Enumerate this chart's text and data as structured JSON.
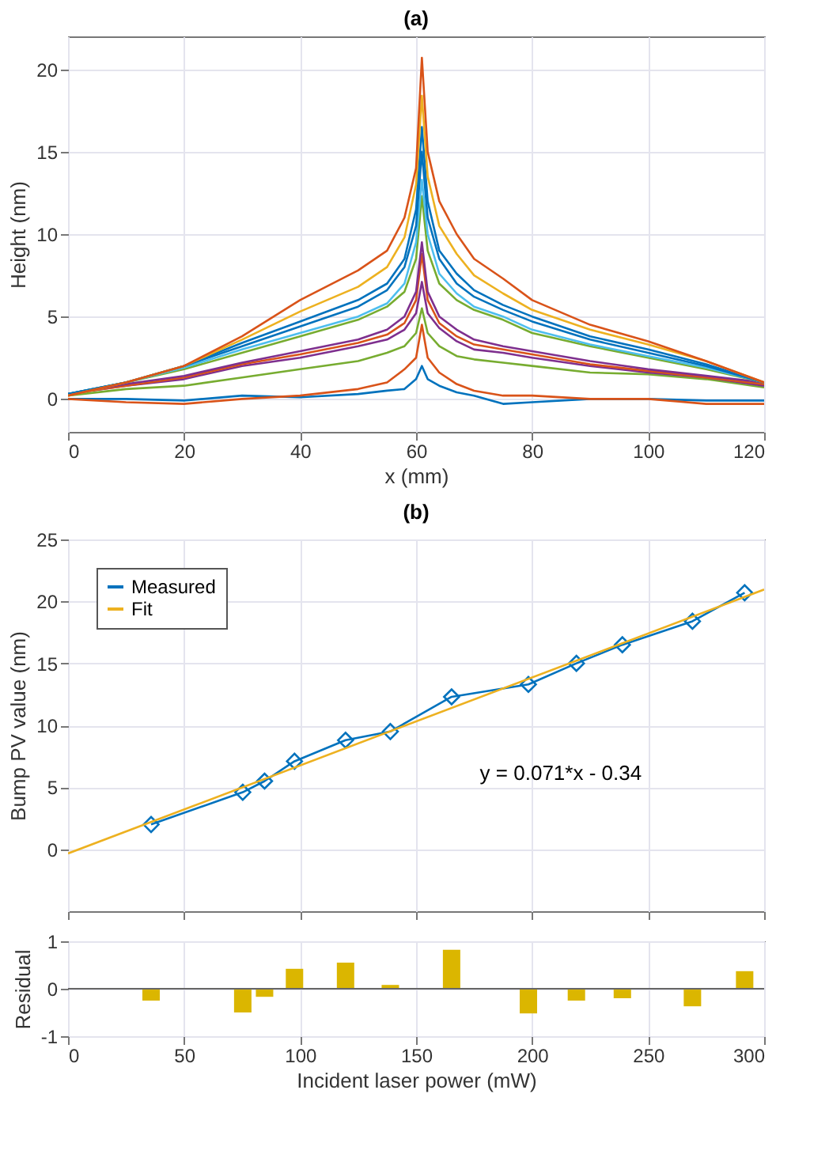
{
  "chart_data": [
    {
      "type": "line",
      "title": "(a)",
      "xlabel": "x (mm)",
      "ylabel": "Height (nm)",
      "xlim": [
        0,
        120
      ],
      "xticks": [
        0,
        20,
        40,
        60,
        80,
        100,
        120
      ],
      "ylim": [
        -2,
        22
      ],
      "yticks": [
        0,
        5,
        10,
        15,
        20
      ],
      "grid": true,
      "legend": false,
      "marker": "none",
      "line_style": "solid",
      "x": [
        0,
        10,
        20,
        30,
        40,
        50,
        55,
        58,
        60,
        61,
        62,
        64,
        67,
        70,
        75,
        80,
        90,
        100,
        110,
        120
      ],
      "series": [
        {
          "color": "#0072bd",
          "values": [
            0,
            0,
            -0.1,
            0.2,
            0.1,
            0.3,
            0.5,
            0.6,
            1.2,
            2.0,
            1.2,
            0.8,
            0.4,
            0.2,
            -0.3,
            -0.2,
            0,
            0,
            -0.1,
            -0.1
          ]
        },
        {
          "color": "#d95319",
          "values": [
            0,
            -0.2,
            -0.3,
            0,
            0.2,
            0.6,
            1,
            1.8,
            2.5,
            4.5,
            2.5,
            1.6,
            0.9,
            0.5,
            0.2,
            0.2,
            0,
            0,
            -0.3,
            -0.3
          ]
        },
        {
          "color": "#77ac30",
          "values": [
            0.2,
            0.6,
            0.8,
            1.3,
            1.8,
            2.3,
            2.8,
            3.2,
            4,
            5.5,
            4,
            3.2,
            2.6,
            2.4,
            2.2,
            2,
            1.6,
            1.5,
            1.2,
            0.7
          ]
        },
        {
          "color": "#7e2f8e",
          "values": [
            0.3,
            0.8,
            1.2,
            2,
            2.5,
            3.2,
            3.6,
            4.2,
            5.2,
            7.1,
            5.2,
            4.3,
            3.5,
            3,
            2.8,
            2.5,
            2,
            1.6,
            1.3,
            0.8
          ]
        },
        {
          "color": "#d95319",
          "values": [
            0.3,
            0.8,
            1.3,
            2.1,
            2.7,
            3.4,
            3.9,
            4.6,
            6,
            8.8,
            6,
            4.6,
            3.8,
            3.3,
            3,
            2.7,
            2.1,
            1.7,
            1.3,
            0.9
          ]
        },
        {
          "color": "#7e2f8e",
          "values": [
            0.3,
            0.9,
            1.4,
            2.2,
            2.9,
            3.6,
            4.2,
            5,
            6.5,
            9.5,
            6.5,
            5,
            4.2,
            3.6,
            3.2,
            2.9,
            2.3,
            1.8,
            1.4,
            1
          ]
        },
        {
          "color": "#77ac30",
          "values": [
            0.3,
            1,
            1.8,
            2.8,
            3.8,
            4.8,
            5.6,
            6.5,
            8.5,
            12.3,
            9,
            7,
            6,
            5.4,
            4.8,
            4,
            3.2,
            2.5,
            1.8,
            1
          ]
        },
        {
          "color": "#4dbeee",
          "values": [
            0.3,
            1,
            1.9,
            3,
            4,
            5,
            5.8,
            7,
            9.5,
            13.3,
            10,
            7.6,
            6.4,
            5.6,
            5,
            4.2,
            3.3,
            2.6,
            1.9,
            1
          ]
        },
        {
          "color": "#0072bd",
          "values": [
            0.3,
            1,
            2,
            3.2,
            4.4,
            5.6,
            6.6,
            8,
            10.5,
            15,
            11,
            8.5,
            7,
            6.2,
            5.4,
            4.7,
            3.6,
            2.8,
            2,
            1
          ]
        },
        {
          "color": "#0072bd",
          "values": [
            0.3,
            1,
            2,
            3.4,
            4.7,
            6,
            7,
            8.5,
            11.5,
            16.5,
            12,
            9,
            7.6,
            6.6,
            5.7,
            5,
            3.8,
            3,
            2.1,
            1
          ]
        },
        {
          "color": "#edb120",
          "values": [
            0.2,
            1,
            2,
            3.6,
            5.3,
            6.8,
            8,
            9.8,
            13,
            18.4,
            13.5,
            10.5,
            8.8,
            7.5,
            6.4,
            5.4,
            4.2,
            3.3,
            2.3,
            1
          ]
        },
        {
          "color": "#d95319",
          "values": [
            0.2,
            1,
            2,
            3.8,
            6,
            7.8,
            9,
            11,
            14,
            20.7,
            15,
            12,
            10,
            8.5,
            7.3,
            6,
            4.5,
            3.5,
            2.3,
            1
          ]
        }
      ]
    },
    {
      "type": "line",
      "title": "(b)",
      "ylabel": "Bump PV value (nm)",
      "xlim": [
        0,
        300
      ],
      "xticks": [
        0,
        50,
        100,
        150,
        200,
        250,
        300
      ],
      "ylim": [
        -5,
        25
      ],
      "yticks": [
        0,
        5,
        10,
        15,
        20,
        25
      ],
      "grid": true,
      "legend": "top left",
      "tick_labels": "y",
      "line_style": "solid",
      "annotations": [
        "y = 0.071*x - 0.34"
      ],
      "series": [
        {
          "name": "Measured",
          "color": "#0072bd",
          "marker": "diamond",
          "x": [
            35.8,
            75.3,
            84.7,
            97.6,
            119.6,
            138.9,
            165.3,
            198.4,
            219.1,
            238.9,
            269.1,
            291.6
          ],
          "values": [
            2.0,
            4.6,
            5.5,
            7.1,
            8.8,
            9.5,
            12.3,
            13.3,
            15.0,
            16.5,
            18.4,
            20.7
          ]
        },
        {
          "name": "Fit",
          "color": "#edb120",
          "marker": "none",
          "x": [
            0,
            300
          ],
          "values": [
            -0.34,
            20.96
          ]
        }
      ]
    },
    {
      "type": "bar",
      "ylabel": "Residual",
      "xlabel": "Incident laser power (mW)",
      "xlim": [
        0,
        300
      ],
      "xticks": [
        0,
        50,
        100,
        150,
        200,
        250,
        300
      ],
      "ylim": [
        -1,
        1
      ],
      "yticks": [
        -1,
        0,
        1
      ],
      "grid": true,
      "legend": false,
      "x": [
        35.8,
        75.3,
        84.7,
        97.6,
        119.6,
        138.9,
        165.3,
        198.4,
        219.1,
        238.9,
        269.1,
        291.6
      ],
      "series": [
        {
          "color": "#dbb600",
          "values": [
            -0.25,
            -0.5,
            -0.17,
            0.42,
            0.55,
            0.08,
            0.82,
            -0.52,
            -0.25,
            -0.2,
            -0.37,
            0.37
          ]
        }
      ]
    }
  ]
}
